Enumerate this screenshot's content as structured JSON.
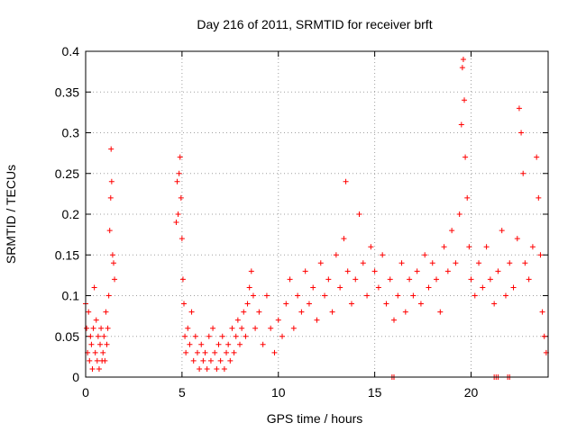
{
  "chart_data": {
    "type": "scatter",
    "title": "Day 216 of 2011, SRMTID for receiver brft",
    "xlabel": "GPS time / hours",
    "ylabel": "SRMTID / TECUs",
    "xlim": [
      0,
      24
    ],
    "ylim": [
      0,
      0.4
    ],
    "xticks": [
      0,
      5,
      10,
      15,
      20
    ],
    "xtick_labels": [
      "0",
      "5",
      "10",
      "15",
      "20"
    ],
    "yticks": [
      0,
      0.05,
      0.1,
      0.15,
      0.2,
      0.25,
      0.3,
      0.35,
      0.4
    ],
    "ytick_labels": [
      "0",
      "0.05",
      "0.1",
      "0.15",
      "0.2",
      "0.25",
      "0.3",
      "0.35",
      "0.4"
    ],
    "grid": true,
    "legend": "none",
    "marker": "+",
    "color": "#ff0000",
    "series": [
      {
        "name": "SRMTID",
        "points": [
          [
            0.0,
            0.09
          ],
          [
            0.05,
            0.06
          ],
          [
            0.1,
            0.03
          ],
          [
            0.15,
            0.08
          ],
          [
            0.2,
            0.02
          ],
          [
            0.25,
            0.05
          ],
          [
            0.3,
            0.04
          ],
          [
            0.35,
            0.01
          ],
          [
            0.4,
            0.06
          ],
          [
            0.45,
            0.11
          ],
          [
            0.5,
            0.03
          ],
          [
            0.55,
            0.07
          ],
          [
            0.6,
            0.02
          ],
          [
            0.65,
            0.05
          ],
          [
            0.7,
            0.01
          ],
          [
            0.75,
            0.04
          ],
          [
            0.8,
            0.06
          ],
          [
            0.85,
            0.02
          ],
          [
            0.9,
            0.03
          ],
          [
            0.95,
            0.05
          ],
          [
            1.0,
            0.02
          ],
          [
            1.05,
            0.08
          ],
          [
            1.1,
            0.04
          ],
          [
            1.15,
            0.06
          ],
          [
            1.2,
            0.1
          ],
          [
            1.25,
            0.18
          ],
          [
            1.3,
            0.22
          ],
          [
            1.32,
            0.28
          ],
          [
            1.35,
            0.24
          ],
          [
            1.4,
            0.15
          ],
          [
            1.45,
            0.14
          ],
          [
            1.5,
            0.12
          ],
          [
            4.7,
            0.19
          ],
          [
            4.75,
            0.24
          ],
          [
            4.8,
            0.2
          ],
          [
            4.85,
            0.25
          ],
          [
            4.9,
            0.27
          ],
          [
            4.95,
            0.22
          ],
          [
            5.0,
            0.17
          ],
          [
            5.05,
            0.12
          ],
          [
            5.1,
            0.09
          ],
          [
            5.15,
            0.05
          ],
          [
            5.2,
            0.03
          ],
          [
            5.3,
            0.06
          ],
          [
            5.4,
            0.04
          ],
          [
            5.5,
            0.08
          ],
          [
            5.6,
            0.02
          ],
          [
            5.7,
            0.05
          ],
          [
            5.8,
            0.03
          ],
          [
            5.9,
            0.01
          ],
          [
            6.0,
            0.04
          ],
          [
            6.1,
            0.02
          ],
          [
            6.2,
            0.03
          ],
          [
            6.3,
            0.01
          ],
          [
            6.4,
            0.05
          ],
          [
            6.5,
            0.02
          ],
          [
            6.6,
            0.06
          ],
          [
            6.7,
            0.03
          ],
          [
            6.8,
            0.01
          ],
          [
            6.9,
            0.04
          ],
          [
            7.0,
            0.02
          ],
          [
            7.1,
            0.05
          ],
          [
            7.2,
            0.01
          ],
          [
            7.3,
            0.03
          ],
          [
            7.4,
            0.04
          ],
          [
            7.5,
            0.02
          ],
          [
            7.6,
            0.06
          ],
          [
            7.7,
            0.03
          ],
          [
            7.8,
            0.05
          ],
          [
            7.9,
            0.07
          ],
          [
            8.0,
            0.04
          ],
          [
            8.1,
            0.06
          ],
          [
            8.2,
            0.08
          ],
          [
            8.3,
            0.05
          ],
          [
            8.4,
            0.09
          ],
          [
            8.5,
            0.11
          ],
          [
            8.6,
            0.13
          ],
          [
            8.7,
            0.1
          ],
          [
            8.8,
            0.06
          ],
          [
            9.0,
            0.08
          ],
          [
            9.2,
            0.04
          ],
          [
            9.4,
            0.1
          ],
          [
            9.6,
            0.06
          ],
          [
            9.8,
            0.03
          ],
          [
            10.0,
            0.07
          ],
          [
            10.2,
            0.05
          ],
          [
            10.4,
            0.09
          ],
          [
            10.6,
            0.12
          ],
          [
            10.8,
            0.06
          ],
          [
            11.0,
            0.1
          ],
          [
            11.2,
            0.08
          ],
          [
            11.4,
            0.13
          ],
          [
            11.6,
            0.09
          ],
          [
            11.8,
            0.11
          ],
          [
            12.0,
            0.07
          ],
          [
            12.2,
            0.14
          ],
          [
            12.4,
            0.1
          ],
          [
            12.6,
            0.12
          ],
          [
            12.8,
            0.08
          ],
          [
            13.0,
            0.15
          ],
          [
            13.2,
            0.11
          ],
          [
            13.4,
            0.17
          ],
          [
            13.5,
            0.24
          ],
          [
            13.6,
            0.13
          ],
          [
            13.8,
            0.09
          ],
          [
            14.0,
            0.12
          ],
          [
            14.2,
            0.2
          ],
          [
            14.4,
            0.14
          ],
          [
            14.6,
            0.1
          ],
          [
            14.8,
            0.16
          ],
          [
            15.0,
            0.13
          ],
          [
            15.2,
            0.11
          ],
          [
            15.4,
            0.15
          ],
          [
            15.6,
            0.09
          ],
          [
            15.8,
            0.12
          ],
          [
            16.0,
            0.07
          ],
          [
            16.2,
            0.1
          ],
          [
            16.4,
            0.14
          ],
          [
            16.6,
            0.08
          ],
          [
            16.8,
            0.12
          ],
          [
            17.0,
            0.1
          ],
          [
            17.2,
            0.13
          ],
          [
            17.4,
            0.09
          ],
          [
            17.6,
            0.15
          ],
          [
            17.8,
            0.11
          ],
          [
            18.0,
            0.14
          ],
          [
            18.2,
            0.12
          ],
          [
            18.4,
            0.08
          ],
          [
            18.6,
            0.16
          ],
          [
            18.8,
            0.13
          ],
          [
            19.0,
            0.18
          ],
          [
            19.2,
            0.14
          ],
          [
            19.4,
            0.2
          ],
          [
            19.5,
            0.31
          ],
          [
            19.55,
            0.38
          ],
          [
            19.6,
            0.39
          ],
          [
            19.65,
            0.34
          ],
          [
            19.7,
            0.27
          ],
          [
            19.8,
            0.22
          ],
          [
            19.9,
            0.16
          ],
          [
            20.0,
            0.12
          ],
          [
            20.2,
            0.1
          ],
          [
            20.4,
            0.14
          ],
          [
            20.6,
            0.11
          ],
          [
            20.8,
            0.16
          ],
          [
            21.0,
            0.12
          ],
          [
            21.2,
            0.09
          ],
          [
            21.4,
            0.13
          ],
          [
            21.6,
            0.18
          ],
          [
            21.8,
            0.1
          ],
          [
            22.0,
            0.14
          ],
          [
            22.2,
            0.11
          ],
          [
            22.4,
            0.17
          ],
          [
            22.5,
            0.33
          ],
          [
            22.6,
            0.3
          ],
          [
            22.7,
            0.25
          ],
          [
            22.8,
            0.14
          ],
          [
            23.0,
            0.12
          ],
          [
            23.2,
            0.16
          ],
          [
            23.4,
            0.27
          ],
          [
            23.5,
            0.22
          ],
          [
            23.6,
            0.15
          ],
          [
            23.7,
            0.08
          ],
          [
            23.8,
            0.05
          ],
          [
            23.9,
            0.03
          ],
          [
            15.9,
            0.0
          ],
          [
            16.0,
            0.0
          ],
          [
            21.2,
            0.0
          ],
          [
            21.3,
            0.0
          ],
          [
            21.4,
            0.0
          ],
          [
            21.9,
            0.0
          ],
          [
            22.0,
            0.0
          ]
        ]
      }
    ]
  }
}
